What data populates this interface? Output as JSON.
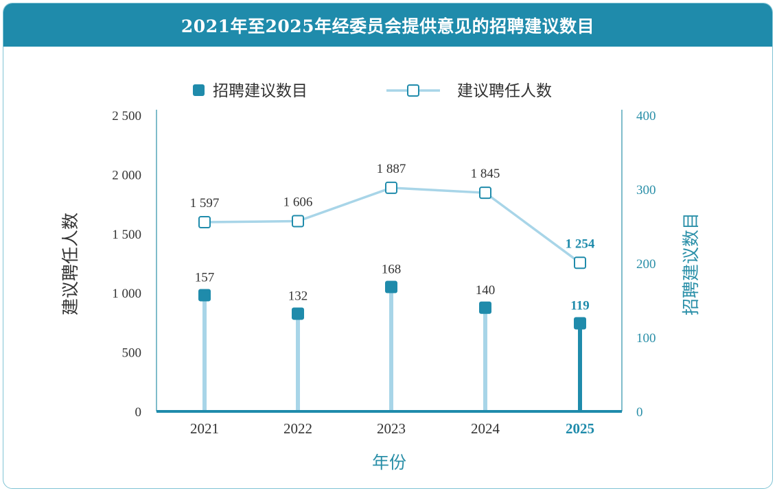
{
  "chart_data": {
    "type": "bar-line-combo",
    "title": "2021年至2025年经委员会提供意见的招聘建议数目",
    "categories": [
      "2021",
      "2022",
      "2023",
      "2024",
      "2025"
    ],
    "xlabel": "年份",
    "y_left_label": "建议聘任人数",
    "y_right_label": "招聘建议数目",
    "y_left_ticks": [
      "0",
      "500",
      "1 000",
      "1 500",
      "2 000",
      "2 500"
    ],
    "y_right_ticks": [
      "0",
      "100",
      "200",
      "300",
      "400"
    ],
    "ylim_left": [
      0,
      2500
    ],
    "ylim_right": [
      0,
      400
    ],
    "series": [
      {
        "name": "招聘建议数目",
        "type": "lollipop",
        "axis": "right",
        "values": [
          157,
          132,
          168,
          140,
          119
        ],
        "labels": [
          "157",
          "132",
          "168",
          "140",
          "119"
        ]
      },
      {
        "name": "建议聘任人数",
        "type": "line",
        "axis": "left",
        "values": [
          1597,
          1606,
          1887,
          1845,
          1254
        ],
        "labels": [
          "1 597",
          "1 606",
          "1 887",
          "1 845",
          "1 254"
        ]
      }
    ],
    "legend_position": "top-center",
    "highlight_category": "2025",
    "colors": {
      "title_bg": "#1f8bab",
      "accent": "#1f8bab",
      "light": "#a8d5e8",
      "axis_right": "#2a8fa8",
      "text": "#333333",
      "highlight_text": "#1f8bab"
    }
  }
}
